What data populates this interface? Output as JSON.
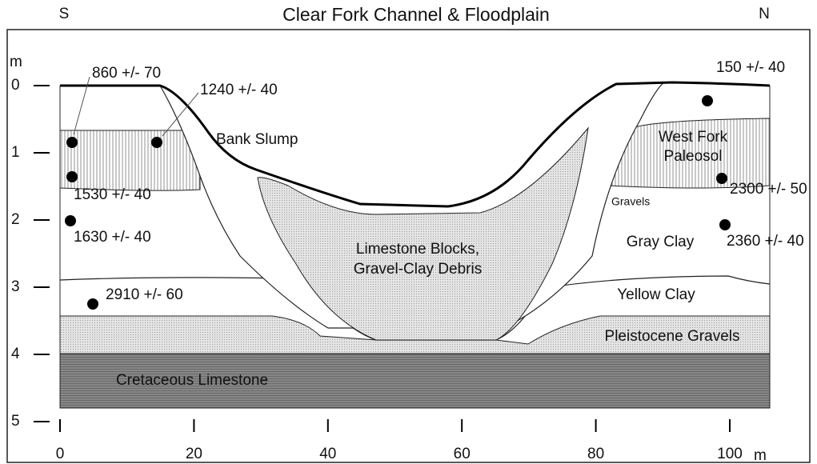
{
  "title": "Clear Fork Channel & Floodplain",
  "directions": {
    "left": "S",
    "right": "N"
  },
  "y_axis": {
    "unit": "m",
    "ticks": [
      0,
      1,
      2,
      3,
      4,
      5
    ]
  },
  "x_axis": {
    "unit": "m",
    "ticks": [
      0,
      20,
      40,
      60,
      80,
      100
    ]
  },
  "layers": {
    "bank_slump": "Bank Slump",
    "debris": [
      "Limestone Blocks,",
      "Gravel-Clay Debris"
    ],
    "paleosol": [
      "West Fork",
      "Paleosol"
    ],
    "gravels": "Gravels",
    "gray_clay": "Gray Clay",
    "yellow_clay": "Yellow Clay",
    "pleistocene": "Pleistocene Gravels",
    "cretaceous": "Cretaceous Limestone"
  },
  "dates": [
    "860 +/- 70",
    "1240 +/- 40",
    "1530 +/- 40",
    "1630 +/- 40",
    "2910 +/- 60",
    "150 +/- 40",
    "2300 +/- 50",
    "2360 +/- 40"
  ]
}
